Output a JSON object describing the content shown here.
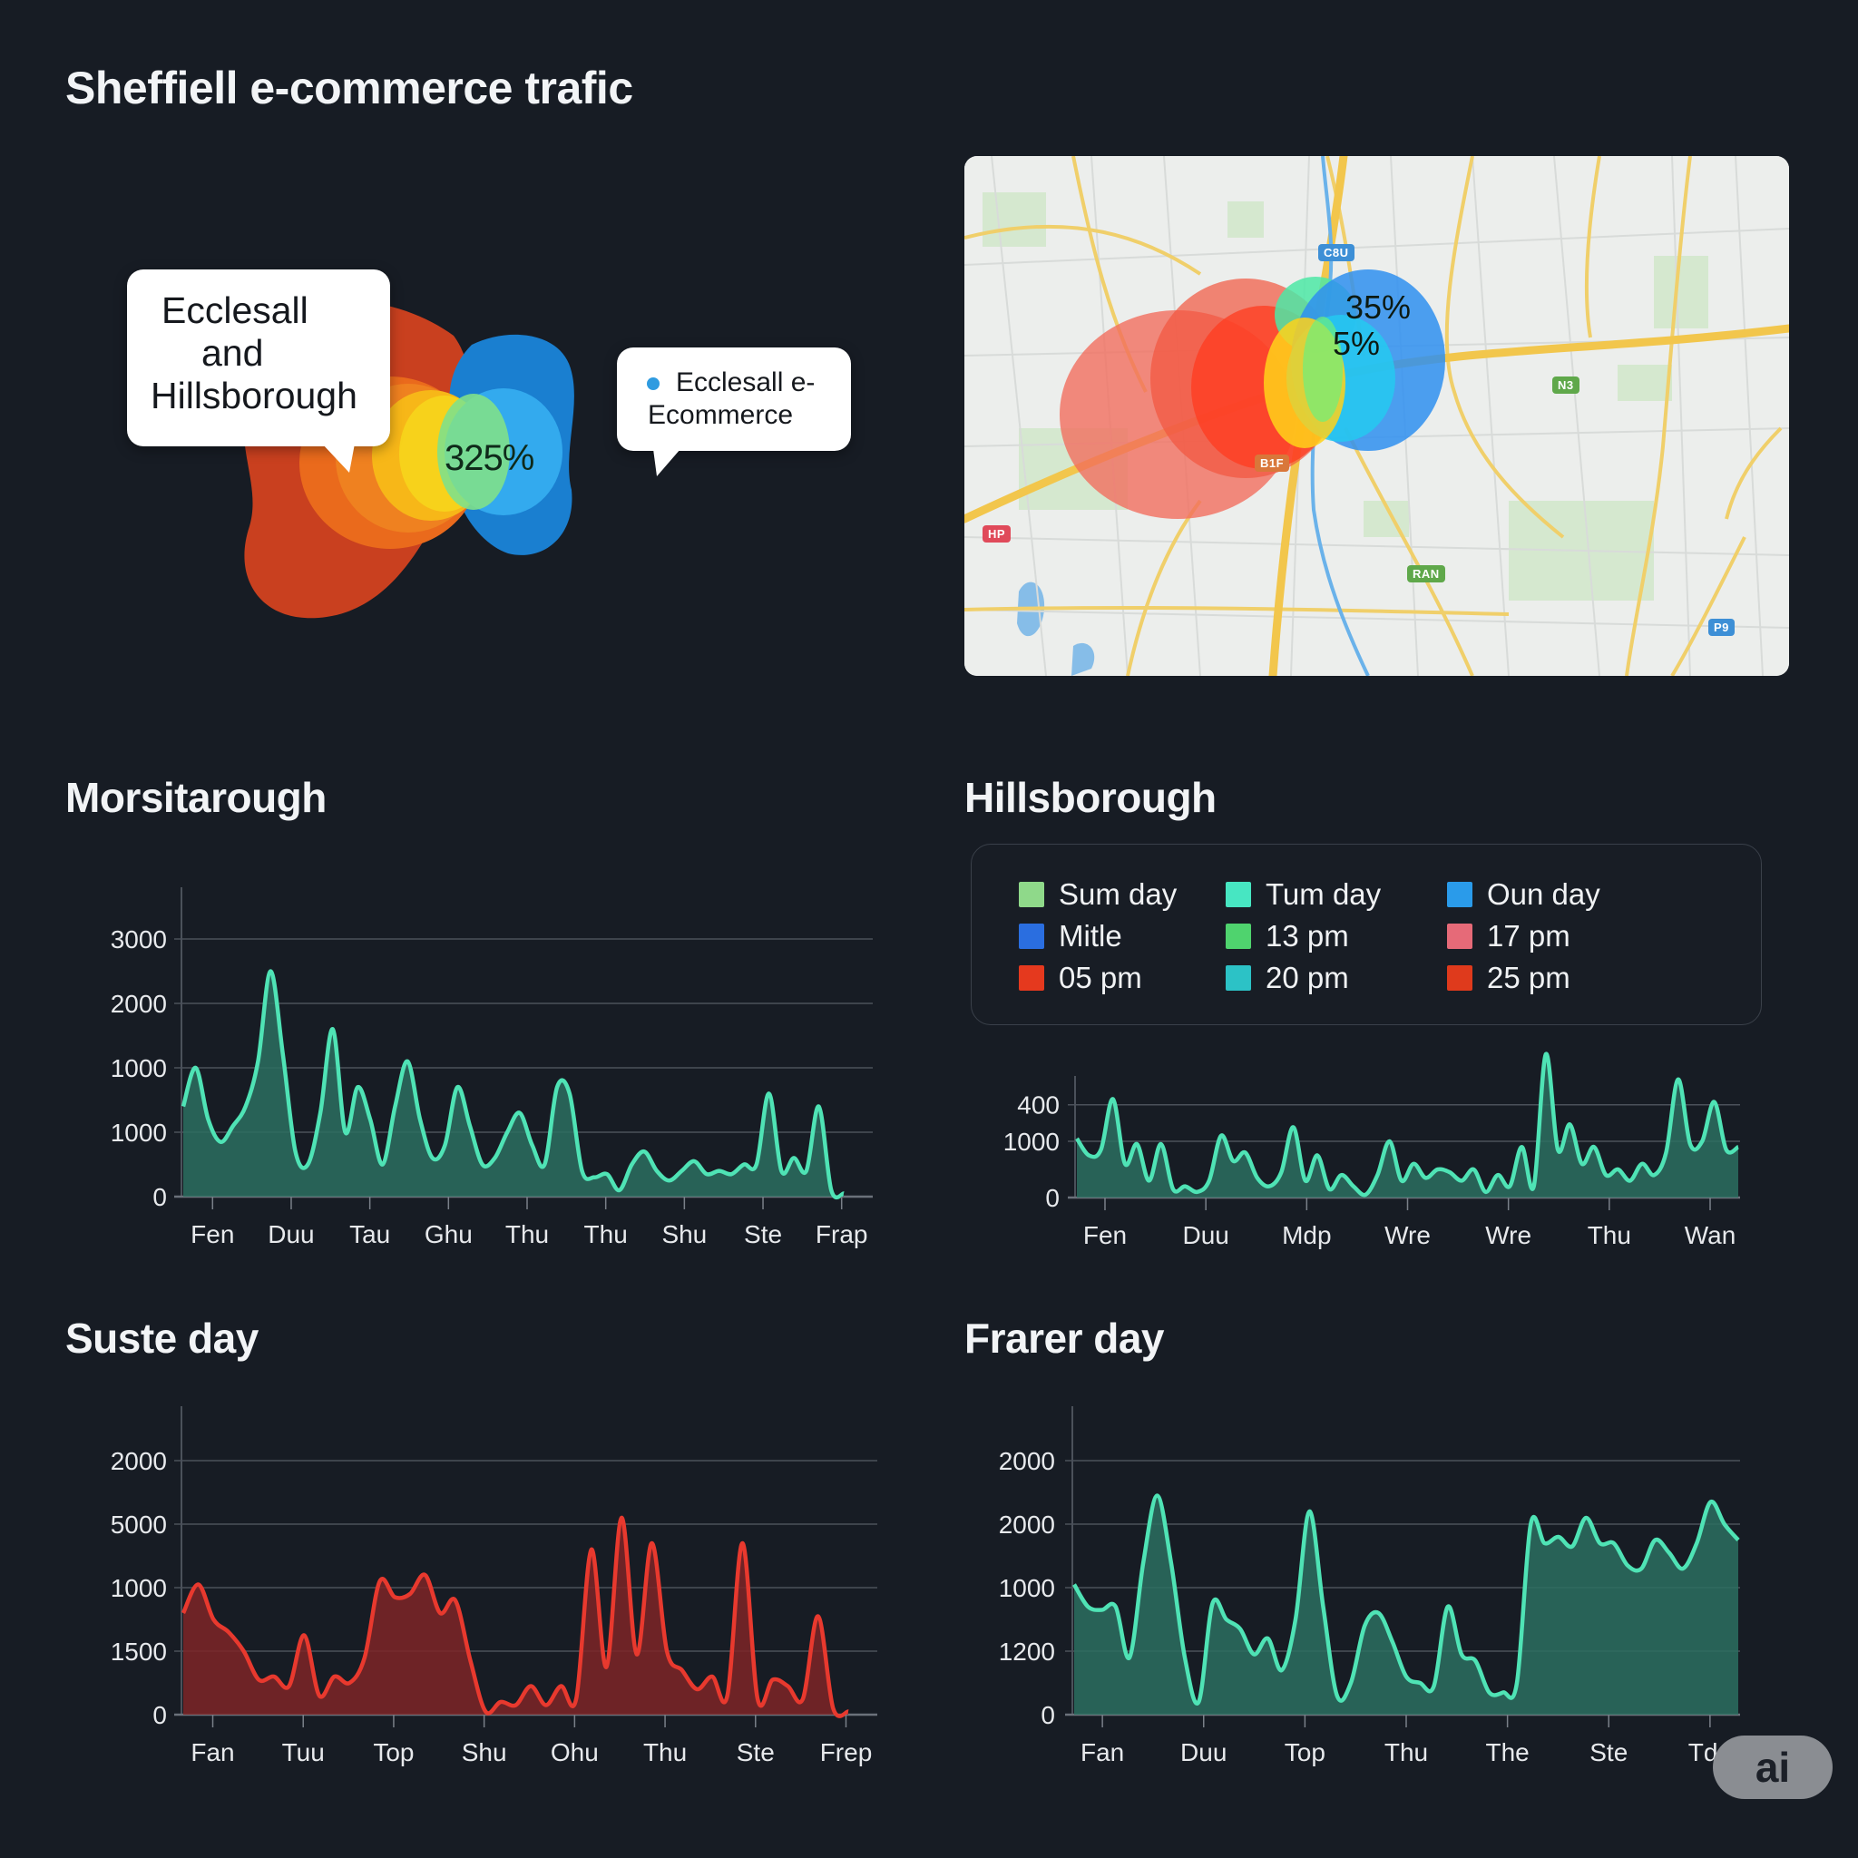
{
  "page": {
    "title": "Sheffiell e-commerce trafic"
  },
  "infographic": {
    "bubble_main_lines": [
      "Ecclesall",
      "and",
      "Hillsborough"
    ],
    "bubble_secondary_lines": [
      "Ecclesall e-",
      "Ecommerce"
    ],
    "bubble_secondary_dot_color": "#2f9be0",
    "center_value": "325%",
    "colors": {
      "red": "#c9401f",
      "orange": "#ea6a1c",
      "yellow": "#f7d21b",
      "green": "#7fe08a",
      "blue": "#1a7fd0",
      "light_blue": "#33aaee"
    }
  },
  "map": {
    "labels": [
      "35%",
      "5%"
    ],
    "badges": [
      {
        "text": "C8U",
        "color": "#3d8fd6"
      },
      {
        "text": "N3",
        "color": "#5fa84a"
      },
      {
        "text": "B1F",
        "color": "#d9773a"
      },
      {
        "text": "HP",
        "color": "#e04a5a"
      },
      {
        "text": "RAN",
        "color": "#5fa84a"
      },
      {
        "text": "P9",
        "color": "#3d8fd6"
      }
    ],
    "heat_colors": [
      "#f26b5b",
      "#ff3b1f",
      "#ffd21a",
      "#4de8a6",
      "#2f8ff0"
    ]
  },
  "legend": {
    "items": [
      {
        "label": "Sum day",
        "color": "#8fd98a"
      },
      {
        "label": "Tum day",
        "color": "#47e6c2"
      },
      {
        "label": "Oun day",
        "color": "#2a9bea"
      },
      {
        "label": "Mitle",
        "color": "#2a6ee0"
      },
      {
        "label": "13 pm",
        "color": "#4fd36e"
      },
      {
        "label": "17 pm",
        "color": "#e66a78"
      },
      {
        "label": "05 pm",
        "color": "#e5391e"
      },
      {
        "label": "20 pm",
        "color": "#2cc2c6"
      },
      {
        "label": "25 pm",
        "color": "#df3a1c"
      }
    ]
  },
  "chart_data": [
    {
      "id": "morsitarough",
      "type": "area",
      "title": "Morsitarough",
      "color": "#4fe3b5",
      "fill": "#2c6f60",
      "grid": true,
      "yticks": [
        "0",
        "1000",
        "1000",
        "2000",
        "3000"
      ],
      "xticks": [
        "Fen",
        "Duu",
        "Tau",
        "Ghu",
        "Thu",
        "Thu",
        "Shu",
        "Ste",
        "Frap"
      ],
      "ylim": [
        0,
        4.9
      ],
      "values": [
        1.4,
        2.0,
        1.2,
        0.85,
        1.1,
        1.4,
        2.1,
        3.5,
        2.2,
        0.7,
        0.5,
        1.3,
        2.6,
        1.0,
        1.7,
        1.2,
        0.5,
        1.4,
        2.1,
        1.2,
        0.6,
        0.8,
        1.7,
        1.1,
        0.5,
        0.6,
        1.0,
        1.3,
        0.8,
        0.5,
        1.7,
        1.6,
        0.4,
        0.3,
        0.35,
        0.1,
        0.5,
        0.7,
        0.4,
        0.25,
        0.4,
        0.55,
        0.35,
        0.4,
        0.35,
        0.5,
        0.5,
        1.6,
        0.4,
        0.6,
        0.4,
        1.4,
        0.1,
        0.05
      ]
    },
    {
      "id": "hillsborough",
      "type": "area",
      "title": "Hillsborough",
      "color": "#4fe3b5",
      "fill": "#2c6f60",
      "grid": true,
      "yticks": [
        "0",
        "1000",
        "400"
      ],
      "xticks": [
        "Fen",
        "Duu",
        "Mdp",
        "Wre",
        "Wre",
        "Thu",
        "Wan"
      ],
      "ylim": [
        0,
        2.3
      ],
      "values": [
        1.05,
        0.75,
        0.85,
        1.75,
        0.6,
        0.95,
        0.3,
        0.95,
        0.15,
        0.2,
        0.1,
        0.3,
        1.1,
        0.65,
        0.8,
        0.35,
        0.2,
        0.45,
        1.25,
        0.3,
        0.75,
        0.15,
        0.4,
        0.2,
        0.05,
        0.4,
        1.0,
        0.3,
        0.6,
        0.35,
        0.5,
        0.45,
        0.3,
        0.5,
        0.1,
        0.4,
        0.2,
        0.9,
        0.2,
        2.55,
        0.85,
        1.3,
        0.6,
        0.9,
        0.4,
        0.5,
        0.3,
        0.6,
        0.4,
        0.8,
        2.1,
        0.95,
        1.0,
        1.7,
        0.85,
        0.9
      ]
    },
    {
      "id": "suste-day",
      "type": "area",
      "title": "Suste day",
      "color": "#e8392e",
      "fill": "#7e2527",
      "grid": true,
      "yticks": [
        "0",
        "1500",
        "1000",
        "5000",
        "2000"
      ],
      "xticks": [
        "Fan",
        "Tuu",
        "Top",
        "Shu",
        "Ohu",
        "Thu",
        "Ste",
        "Frep"
      ],
      "ylim": [
        0,
        4.9
      ],
      "values": [
        1.6,
        2.05,
        1.5,
        1.3,
        1.0,
        0.55,
        0.6,
        0.45,
        1.25,
        0.3,
        0.6,
        0.5,
        0.9,
        2.1,
        1.85,
        1.9,
        2.2,
        1.6,
        1.8,
        0.85,
        0.05,
        0.2,
        0.15,
        0.45,
        0.15,
        0.45,
        0.25,
        2.6,
        0.75,
        3.1,
        0.95,
        2.7,
        1.0,
        0.7,
        0.4,
        0.6,
        0.3,
        2.7,
        0.25,
        0.55,
        0.45,
        0.25,
        1.55,
        0.1,
        0.05
      ]
    },
    {
      "id": "frarer-day",
      "type": "area",
      "title": "Frarer day",
      "color": "#4fe3b5",
      "fill": "#2c6f60",
      "grid": true,
      "yticks": [
        "0",
        "1200",
        "1000",
        "2000",
        "2000"
      ],
      "xticks": [
        "Fan",
        "Duu",
        "Top",
        "Thu",
        "The",
        "Ste",
        "Tde"
      ],
      "ylim": [
        0,
        4.9
      ],
      "values": [
        2.05,
        1.7,
        1.65,
        1.7,
        0.9,
        2.4,
        3.45,
        2.4,
        0.9,
        0.2,
        1.75,
        1.5,
        1.35,
        0.95,
        1.2,
        0.7,
        1.5,
        3.2,
        1.7,
        0.3,
        0.5,
        1.4,
        1.6,
        1.15,
        0.6,
        0.5,
        0.45,
        1.7,
        0.95,
        0.85,
        0.35,
        0.35,
        0.5,
        3.0,
        2.7,
        2.8,
        2.65,
        3.1,
        2.7,
        2.7,
        2.35,
        2.3,
        2.75,
        2.55,
        2.3,
        2.7,
        3.35,
        3.0,
        2.75
      ]
    }
  ],
  "badge": {
    "text": "ai"
  }
}
